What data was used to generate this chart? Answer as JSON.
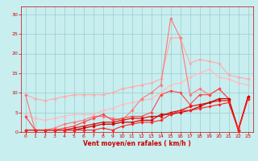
{
  "x": [
    0,
    1,
    2,
    3,
    4,
    5,
    6,
    7,
    8,
    9,
    10,
    11,
    12,
    13,
    14,
    15,
    16,
    17,
    18,
    19,
    20,
    21,
    22,
    23
  ],
  "lines": [
    {
      "color": "#ffaaaa",
      "lw": 0.8,
      "marker": "D",
      "ms": 1.8,
      "y": [
        9.5,
        8.5,
        8.0,
        8.5,
        9.0,
        9.5,
        9.5,
        9.5,
        9.5,
        10.0,
        11.0,
        11.5,
        12.0,
        12.5,
        13.5,
        24.0,
        24.0,
        17.5,
        18.5,
        18.0,
        17.5,
        14.5,
        14.0,
        13.5
      ]
    },
    {
      "color": "#ffbbbb",
      "lw": 0.8,
      "marker": "D",
      "ms": 1.8,
      "y": [
        4.5,
        3.5,
        3.0,
        3.5,
        4.0,
        4.5,
        4.5,
        4.5,
        5.5,
        6.0,
        7.0,
        7.5,
        8.0,
        8.5,
        10.0,
        12.0,
        12.5,
        14.0,
        15.0,
        16.0,
        14.0,
        13.5,
        12.5,
        12.0
      ]
    },
    {
      "color": "#ff7777",
      "lw": 0.8,
      "marker": "D",
      "ms": 1.8,
      "y": [
        9.5,
        0.5,
        0.5,
        1.0,
        2.0,
        2.5,
        3.0,
        4.0,
        4.0,
        3.5,
        3.0,
        5.5,
        8.5,
        10.0,
        12.0,
        29.0,
        24.0,
        9.5,
        11.0,
        9.5,
        11.0,
        8.5,
        1.0,
        8.5
      ]
    },
    {
      "color": "#ff4444",
      "lw": 0.8,
      "marker": "D",
      "ms": 1.8,
      "y": [
        4.0,
        0.5,
        0.5,
        0.5,
        1.0,
        1.5,
        2.5,
        3.5,
        4.5,
        3.0,
        3.5,
        4.0,
        4.0,
        5.0,
        9.5,
        10.5,
        10.0,
        7.0,
        9.5,
        9.5,
        11.0,
        8.5,
        0.5,
        8.5
      ]
    },
    {
      "color": "#dd1111",
      "lw": 0.9,
      "marker": "D",
      "ms": 1.8,
      "y": [
        0.5,
        0.5,
        0.5,
        0.5,
        0.5,
        1.0,
        1.5,
        2.0,
        2.5,
        2.5,
        3.0,
        3.5,
        3.5,
        4.0,
        4.0,
        5.0,
        5.5,
        6.5,
        7.0,
        7.5,
        8.0,
        8.0,
        0.5,
        9.0
      ]
    },
    {
      "color": "#cc0000",
      "lw": 0.9,
      "marker": "D",
      "ms": 1.8,
      "y": [
        0.5,
        0.5,
        0.5,
        0.5,
        0.5,
        0.5,
        1.0,
        1.5,
        2.0,
        2.0,
        2.5,
        2.5,
        3.0,
        3.0,
        4.5,
        4.5,
        5.0,
        5.5,
        6.5,
        7.5,
        8.5,
        8.5,
        0.5,
        9.0
      ]
    },
    {
      "color": "#ff2222",
      "lw": 0.8,
      "marker": "D",
      "ms": 1.8,
      "y": [
        0.5,
        0.5,
        0.5,
        0.5,
        0.5,
        0.5,
        0.5,
        0.5,
        1.0,
        0.5,
        1.5,
        2.0,
        2.5,
        2.5,
        3.0,
        4.5,
        5.5,
        5.5,
        6.0,
        6.5,
        7.0,
        7.5,
        0.5,
        8.5
      ]
    }
  ],
  "xlim": [
    -0.5,
    23.5
  ],
  "ylim": [
    0,
    32
  ],
  "yticks": [
    0,
    5,
    10,
    15,
    20,
    25,
    30
  ],
  "xticks": [
    0,
    1,
    2,
    3,
    4,
    5,
    6,
    7,
    8,
    9,
    10,
    11,
    12,
    13,
    14,
    15,
    16,
    17,
    18,
    19,
    20,
    21,
    22,
    23
  ],
  "xlabel": "Vent moyen/en rafales ( km/h )",
  "bg_color": "#c8eef0",
  "grid_color": "#99cccc",
  "tick_color": "#cc0000",
  "label_color": "#cc0000"
}
